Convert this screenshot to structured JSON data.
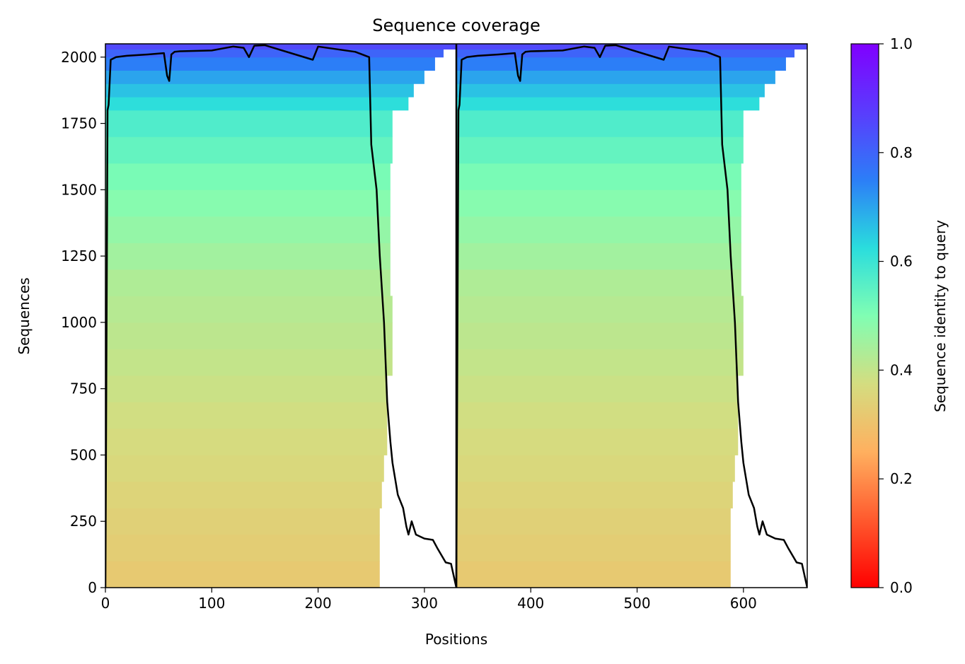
{
  "chart_data": {
    "type": "heatmap",
    "title": "Sequence coverage",
    "xlabel": "Positions",
    "ylabel": "Sequences",
    "xlim": [
      0,
      660
    ],
    "ylim": [
      0,
      2050
    ],
    "x_ticks": [
      0,
      100,
      200,
      300,
      400,
      500,
      600
    ],
    "y_ticks": [
      0,
      250,
      500,
      750,
      1000,
      1250,
      1500,
      1750,
      2000
    ],
    "chain_break_x": 330,
    "colorbar": {
      "label": "Sequence identity to query",
      "range": [
        0.0,
        1.0
      ],
      "ticks": [
        0.0,
        0.2,
        0.4,
        0.6,
        0.8,
        1.0
      ],
      "colormap": "rainbow_r"
    },
    "coverage_blocks": [
      {
        "from_seq": 0,
        "to_seq": 100,
        "identity": 0.32,
        "chain1_end": 258,
        "chain2_end": 588
      },
      {
        "from_seq": 100,
        "to_seq": 200,
        "identity": 0.33,
        "chain1_end": 258,
        "chain2_end": 588
      },
      {
        "from_seq": 200,
        "to_seq": 300,
        "identity": 0.34,
        "chain1_end": 258,
        "chain2_end": 588
      },
      {
        "from_seq": 300,
        "to_seq": 400,
        "identity": 0.35,
        "chain1_end": 260,
        "chain2_end": 590
      },
      {
        "from_seq": 400,
        "to_seq": 500,
        "identity": 0.36,
        "chain1_end": 262,
        "chain2_end": 592
      },
      {
        "from_seq": 500,
        "to_seq": 600,
        "identity": 0.37,
        "chain1_end": 265,
        "chain2_end": 595
      },
      {
        "from_seq": 600,
        "to_seq": 700,
        "identity": 0.38,
        "chain1_end": 265,
        "chain2_end": 595
      },
      {
        "from_seq": 700,
        "to_seq": 800,
        "identity": 0.39,
        "chain1_end": 265,
        "chain2_end": 595
      },
      {
        "from_seq": 800,
        "to_seq": 900,
        "identity": 0.4,
        "chain1_end": 270,
        "chain2_end": 600
      },
      {
        "from_seq": 900,
        "to_seq": 1000,
        "identity": 0.41,
        "chain1_end": 270,
        "chain2_end": 600
      },
      {
        "from_seq": 1000,
        "to_seq": 1100,
        "identity": 0.42,
        "chain1_end": 270,
        "chain2_end": 600
      },
      {
        "from_seq": 1100,
        "to_seq": 1200,
        "identity": 0.43,
        "chain1_end": 268,
        "chain2_end": 598
      },
      {
        "from_seq": 1200,
        "to_seq": 1300,
        "identity": 0.45,
        "chain1_end": 268,
        "chain2_end": 598
      },
      {
        "from_seq": 1300,
        "to_seq": 1400,
        "identity": 0.47,
        "chain1_end": 268,
        "chain2_end": 598
      },
      {
        "from_seq": 1400,
        "to_seq": 1500,
        "identity": 0.49,
        "chain1_end": 268,
        "chain2_end": 598
      },
      {
        "from_seq": 1500,
        "to_seq": 1600,
        "identity": 0.51,
        "chain1_end": 268,
        "chain2_end": 598
      },
      {
        "from_seq": 1600,
        "to_seq": 1700,
        "identity": 0.54,
        "chain1_end": 270,
        "chain2_end": 600
      },
      {
        "from_seq": 1700,
        "to_seq": 1800,
        "identity": 0.57,
        "chain1_end": 270,
        "chain2_end": 600
      },
      {
        "from_seq": 1800,
        "to_seq": 1850,
        "identity": 0.62,
        "chain1_end": 285,
        "chain2_end": 615
      },
      {
        "from_seq": 1850,
        "to_seq": 1900,
        "identity": 0.66,
        "chain1_end": 290,
        "chain2_end": 620
      },
      {
        "from_seq": 1900,
        "to_seq": 1950,
        "identity": 0.7,
        "chain1_end": 300,
        "chain2_end": 630
      },
      {
        "from_seq": 1950,
        "to_seq": 2000,
        "identity": 0.75,
        "chain1_end": 310,
        "chain2_end": 640
      },
      {
        "from_seq": 2000,
        "to_seq": 2030,
        "identity": 0.8,
        "chain1_end": 318,
        "chain2_end": 648
      },
      {
        "from_seq": 2030,
        "to_seq": 2050,
        "identity": 0.85,
        "chain1_end": 330,
        "chain2_end": 660
      }
    ],
    "coverage_line": {
      "x": [
        0,
        2,
        3,
        5,
        10,
        20,
        40,
        55,
        58,
        60,
        62,
        65,
        70,
        100,
        120,
        130,
        135,
        140,
        150,
        195,
        200,
        235,
        248,
        250,
        255,
        258,
        262,
        265,
        268,
        270,
        275,
        280,
        283,
        285,
        288,
        292,
        300,
        308,
        312,
        320,
        325,
        330,
        330,
        332,
        333,
        335,
        340,
        350,
        370,
        385,
        388,
        390,
        392,
        395,
        400,
        430,
        450,
        460,
        465,
        470,
        480,
        525,
        530,
        565,
        578,
        580,
        585,
        588,
        592,
        595,
        598,
        600,
        605,
        610,
        613,
        615,
        618,
        622,
        630,
        638,
        642,
        650,
        655,
        660
      ],
      "y": [
        0,
        1800,
        1820,
        1990,
        2000,
        2005,
        2010,
        2015,
        1930,
        1910,
        2010,
        2020,
        2022,
        2025,
        2040,
        2035,
        2000,
        2043,
        2045,
        1990,
        2040,
        2020,
        2000,
        1670,
        1500,
        1250,
        1000,
        700,
        550,
        470,
        350,
        300,
        230,
        200,
        250,
        200,
        185,
        180,
        150,
        95,
        90,
        0,
        0,
        1800,
        1820,
        1990,
        2000,
        2005,
        2010,
        2015,
        1930,
        1910,
        2010,
        2020,
        2022,
        2025,
        2040,
        2035,
        2000,
        2043,
        2045,
        1990,
        2040,
        2020,
        2000,
        1670,
        1500,
        1250,
        1000,
        700,
        550,
        470,
        350,
        300,
        230,
        200,
        250,
        200,
        185,
        180,
        150,
        95,
        90,
        0
      ]
    }
  }
}
